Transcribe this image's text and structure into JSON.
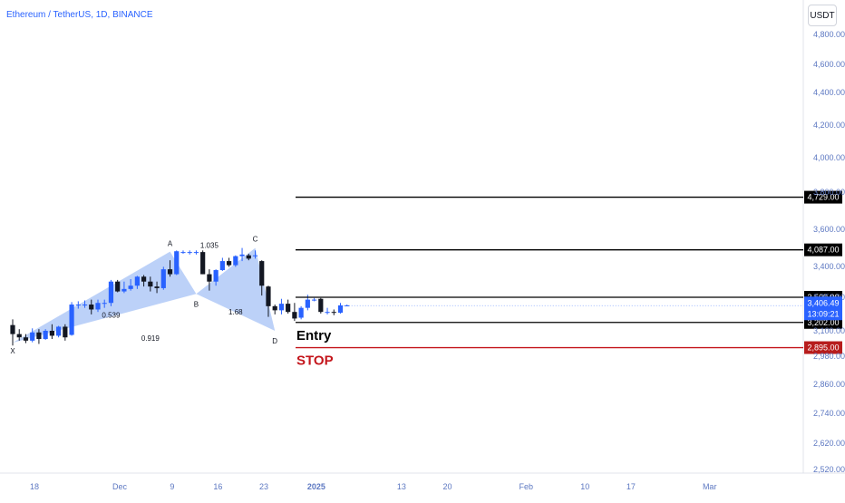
{
  "header": {
    "symbol_title": "Ethereum / TetherUS, 1D, BINANCE",
    "currency": "USDT"
  },
  "colors": {
    "up": "#2962ff",
    "down": "#131722",
    "pattern_fill": "#a6c1f5",
    "level_line": "#000000",
    "stop_line": "#c4161c",
    "axis_text": "#5d78c2",
    "tag_bg": "#000000",
    "stop_tag_bg": "#b71c1c",
    "price_tag_bg": "#2962ff"
  },
  "chart_data": {
    "type": "candlestick",
    "title": "Ethereum / TetherUS, 1D, BINANCE",
    "ylim": [
      2500,
      4900
    ],
    "y_ticks": [
      2520,
      2620,
      2740,
      2860,
      2980,
      3100,
      3250,
      3400,
      3600,
      3800,
      4000,
      4200,
      4400,
      4600,
      4800
    ],
    "x_ticks": [
      {
        "label": "18",
        "day": 0
      },
      {
        "label": "Dec",
        "day": 13
      },
      {
        "label": "9",
        "day": 21
      },
      {
        "label": "16",
        "day": 28
      },
      {
        "label": "23",
        "day": 35
      },
      {
        "label": "2025",
        "day": 43
      },
      {
        "label": "13",
        "day": 56
      },
      {
        "label": "20",
        "day": 63
      },
      {
        "label": "Feb",
        "day": 75
      },
      {
        "label": "10",
        "day": 84
      },
      {
        "label": "17",
        "day": 91
      },
      {
        "label": "Mar",
        "day": 103
      }
    ],
    "candles": [
      [
        3170,
        3240,
        2920,
        3060
      ],
      [
        3060,
        3120,
        2980,
        3020
      ],
      [
        3020,
        3060,
        2950,
        2980
      ],
      [
        2980,
        3130,
        2960,
        3080
      ],
      [
        3080,
        3120,
        2940,
        3000
      ],
      [
        3000,
        3120,
        2990,
        3100
      ],
      [
        3100,
        3180,
        3000,
        3040
      ],
      [
        3040,
        3160,
        3020,
        3150
      ],
      [
        3150,
        3180,
        2980,
        3020
      ],
      [
        3050,
        3450,
        3040,
        3420
      ],
      [
        3420,
        3460,
        3370,
        3420
      ],
      [
        3420,
        3470,
        3380,
        3420
      ],
      [
        3420,
        3480,
        3300,
        3360
      ],
      [
        3360,
        3480,
        3330,
        3440
      ],
      [
        3440,
        3480,
        3380,
        3440
      ],
      [
        3440,
        3720,
        3400,
        3700
      ],
      [
        3700,
        3720,
        3570,
        3580
      ],
      [
        3580,
        3700,
        3560,
        3610
      ],
      [
        3610,
        3730,
        3590,
        3650
      ],
      [
        3650,
        3770,
        3610,
        3760
      ],
      [
        3760,
        3780,
        3640,
        3700
      ],
      [
        3700,
        3760,
        3580,
        3640
      ],
      [
        3640,
        3700,
        3560,
        3620
      ],
      [
        3620,
        3880,
        3600,
        3850
      ],
      [
        3850,
        3960,
        3760,
        3790
      ],
      [
        3790,
        4080,
        3780,
        4070
      ],
      [
        4060,
        4080,
        4040,
        4060
      ],
      [
        4060,
        4080,
        4030,
        4060
      ],
      [
        4060,
        4080,
        4030,
        4060
      ],
      [
        4060,
        4080,
        3790,
        3790
      ],
      [
        3790,
        3850,
        3590,
        3700
      ],
      [
        3700,
        3850,
        3650,
        3840
      ],
      [
        3840,
        3990,
        3830,
        3950
      ],
      [
        3950,
        3990,
        3880,
        3900
      ],
      [
        3900,
        4020,
        3880,
        4010
      ],
      [
        4010,
        4110,
        3950,
        4030
      ],
      [
        4020,
        4040,
        3960,
        3980
      ],
      [
        4020,
        4080,
        3980,
        4020
      ],
      [
        3950,
        3960,
        3530,
        3650
      ],
      [
        3640,
        3650,
        3270,
        3400
      ],
      [
        3400,
        3420,
        3300,
        3350
      ],
      [
        3350,
        3490,
        3300,
        3430
      ],
      [
        3430,
        3480,
        3310,
        3330
      ],
      [
        3330,
        3440,
        3220,
        3250
      ],
      [
        3260,
        3400,
        3240,
        3380
      ],
      [
        3380,
        3540,
        3350,
        3480
      ],
      [
        3480,
        3500,
        3460,
        3480
      ],
      [
        3490,
        3500,
        3310,
        3330
      ],
      [
        3330,
        3380,
        3300,
        3330
      ],
      [
        3330,
        3360,
        3290,
        3320
      ],
      [
        3320,
        3440,
        3310,
        3410
      ],
      [
        3410,
        3420,
        3400,
        3410
      ]
    ],
    "harmonic_pattern": {
      "points": [
        {
          "label": "X",
          "day": 0,
          "price": 2955
        },
        {
          "label": "A",
          "day": 24,
          "price": 4065
        },
        {
          "label": "B",
          "day": 28,
          "price": 3550
        },
        {
          "label": "C",
          "day": 37,
          "price": 4110
        },
        {
          "label": "D",
          "day": 40,
          "price": 3100
        }
      ],
      "ratios": [
        {
          "value": "0.539",
          "day": 15,
          "price": 3260
        },
        {
          "value": "1.035",
          "day": 30,
          "price": 4110
        },
        {
          "value": "1.68",
          "day": 34,
          "price": 3300
        },
        {
          "value": "0.919",
          "day": 21,
          "price": 2980
        }
      ]
    },
    "levels": [
      {
        "price_label": "4,729.00",
        "price": 4729,
        "color": "level",
        "text": ""
      },
      {
        "price_label": "4,087.00",
        "price": 4087,
        "color": "level",
        "text": ""
      },
      {
        "price_label": "3,509.00",
        "price": 3509,
        "color": "level",
        "text": ""
      },
      {
        "price_label": "3,202.00",
        "price": 3202,
        "color": "level",
        "text": "Entry"
      },
      {
        "price_label": "2,895.00",
        "price": 2895,
        "color": "stop",
        "text": "STOP"
      }
    ],
    "current_price": {
      "price": 3406.49,
      "label": "3,406.49",
      "countdown": "13:09:21"
    }
  }
}
